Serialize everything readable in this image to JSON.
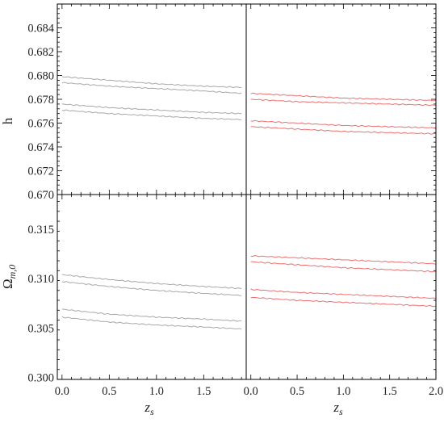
{
  "colors": {
    "left_panels": "#a8a8a8",
    "right_panels": "#ef6f6f",
    "frame": "#000000"
  },
  "labels": {
    "h_ylabel": "h",
    "omega_ylabel_main": "Ω",
    "omega_ylabel_sub": "m,0",
    "xlabel_main": "z",
    "xlabel_sub": "s"
  },
  "chart_data": [
    {
      "type": "line",
      "panel": "top-left",
      "xlabel": "",
      "ylabel": "h",
      "xlim": [
        -0.05,
        1.95
      ],
      "ylim": [
        0.67,
        0.686
      ],
      "yticks": [
        0.67,
        0.672,
        0.674,
        0.676,
        0.678,
        0.68,
        0.682,
        0.684
      ],
      "ytick_labels": [
        "0.670",
        "0.672",
        "0.674",
        "0.676",
        "0.678",
        "0.680",
        "0.682",
        "0.684"
      ],
      "x": [
        0.0,
        0.5,
        1.0,
        1.5,
        1.9
      ],
      "series": [
        {
          "values": [
            0.6799,
            0.6796,
            0.6793,
            0.6791,
            0.679
          ]
        },
        {
          "values": [
            0.6794,
            0.6791,
            0.6789,
            0.6787,
            0.6785
          ]
        },
        {
          "values": [
            0.6776,
            0.6773,
            0.6771,
            0.6769,
            0.6768
          ]
        },
        {
          "values": [
            0.6771,
            0.6768,
            0.6766,
            0.6764,
            0.6763
          ]
        }
      ]
    },
    {
      "type": "line",
      "panel": "top-right",
      "xlim": [
        -0.05,
        2.0
      ],
      "ylim": [
        0.67,
        0.686
      ],
      "x": [
        0.0,
        0.5,
        1.0,
        1.5,
        2.0
      ],
      "series": [
        {
          "values": [
            0.6785,
            0.6783,
            0.6781,
            0.678,
            0.6779
          ]
        },
        {
          "values": [
            0.678,
            0.6778,
            0.6777,
            0.6776,
            0.6775
          ]
        },
        {
          "values": [
            0.6762,
            0.676,
            0.6758,
            0.6757,
            0.6756
          ]
        },
        {
          "values": [
            0.6757,
            0.6755,
            0.6753,
            0.6752,
            0.6751
          ]
        }
      ]
    },
    {
      "type": "line",
      "panel": "bottom-left",
      "xlabel": "z_s",
      "ylabel": "Ω_{m,0}",
      "xlim": [
        -0.05,
        1.95
      ],
      "ylim": [
        0.2998,
        0.3185
      ],
      "yticks": [
        0.3,
        0.305,
        0.31,
        0.315
      ],
      "ytick_labels": [
        "0.300",
        "0.305",
        "0.310",
        "0.315"
      ],
      "xticks": [
        0.0,
        0.5,
        1.0,
        1.5
      ],
      "xtick_labels": [
        "0.0",
        "0.5",
        "1.0",
        "1.5"
      ],
      "x": [
        0.0,
        0.5,
        1.0,
        1.5,
        1.9
      ],
      "series": [
        {
          "values": [
            0.3104,
            0.3099,
            0.3095,
            0.3092,
            0.309
          ]
        },
        {
          "values": [
            0.3097,
            0.3092,
            0.3088,
            0.3085,
            0.3083
          ]
        },
        {
          "values": [
            0.3069,
            0.3064,
            0.3061,
            0.3059,
            0.3057
          ]
        },
        {
          "values": [
            0.3061,
            0.3056,
            0.3053,
            0.3051,
            0.3049
          ]
        }
      ]
    },
    {
      "type": "line",
      "panel": "bottom-right",
      "xlabel": "z_s",
      "xlim": [
        -0.05,
        2.0
      ],
      "ylim": [
        0.2998,
        0.3185
      ],
      "xticks": [
        0.0,
        0.5,
        1.0,
        1.5,
        2.0
      ],
      "xtick_labels": [
        "0.0",
        "0.5",
        "1.0",
        "1.5",
        "2.0"
      ],
      "x": [
        0.0,
        0.5,
        1.0,
        1.5,
        2.0
      ],
      "series": [
        {
          "values": [
            0.3123,
            0.3121,
            0.3119,
            0.3117,
            0.3115
          ]
        },
        {
          "values": [
            0.3117,
            0.3114,
            0.3111,
            0.3109,
            0.3107
          ]
        },
        {
          "values": [
            0.3089,
            0.3086,
            0.3084,
            0.3082,
            0.308
          ]
        },
        {
          "values": [
            0.3081,
            0.3078,
            0.3076,
            0.3074,
            0.3072
          ]
        }
      ]
    }
  ]
}
